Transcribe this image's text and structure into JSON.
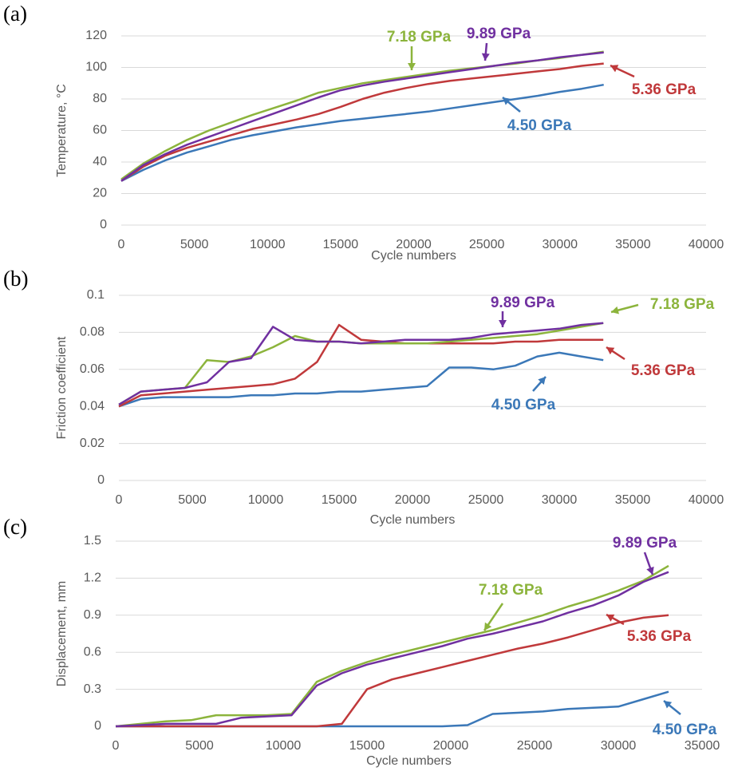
{
  "chart_data": [
    {
      "type": "line",
      "label": "(a)",
      "x_label": "Cycle numbers",
      "y_label": "Temperature, °C",
      "x": [
        0,
        1500,
        3000,
        4500,
        6000,
        7500,
        9000,
        10500,
        12000,
        13500,
        15000,
        16500,
        18000,
        19500,
        21000,
        22500,
        24000,
        25500,
        27000,
        28500,
        30000,
        31500,
        33000
      ],
      "xlim": [
        0,
        40000
      ],
      "xticks": [
        0,
        5000,
        10000,
        15000,
        20000,
        25000,
        30000,
        35000,
        40000
      ],
      "ylim": [
        0,
        120
      ],
      "yticks": [
        0,
        20,
        40,
        60,
        80,
        100,
        120
      ],
      "grid": true,
      "series": [
        {
          "name": "4.50 GPa",
          "color": "#3b78b8",
          "values": [
            28,
            35,
            41,
            46,
            50,
            54,
            57,
            59.5,
            62,
            64,
            66,
            67.5,
            69,
            70.5,
            72,
            74,
            76,
            78,
            80,
            82,
            84.5,
            86.5,
            89
          ]
        },
        {
          "name": "5.36 GPa",
          "color": "#c0393b",
          "values": [
            28,
            37,
            44,
            49,
            53,
            57,
            61,
            64,
            67,
            70.5,
            75,
            80,
            84,
            87,
            89.5,
            91.5,
            93,
            94.5,
            96,
            97.5,
            99,
            101,
            102.5
          ]
        },
        {
          "name": "7.18 GPa",
          "color": "#8cb43c",
          "values": [
            29,
            39,
            47,
            54,
            60,
            65,
            70,
            74.5,
            79,
            84,
            87,
            90,
            92,
            94,
            96,
            98,
            99.5,
            101,
            102.5,
            104.5,
            106,
            108,
            110
          ]
        },
        {
          "name": "9.89 GPa",
          "color": "#7030a0",
          "values": [
            28,
            38,
            45,
            51,
            56,
            61,
            66,
            71,
            76,
            81,
            85.5,
            88.5,
            91,
            93,
            95,
            97,
            99,
            101,
            103,
            104.5,
            106.5,
            108,
            109.5
          ]
        }
      ]
    },
    {
      "type": "line",
      "label": "(b)",
      "x_label": "Cycle numbers",
      "y_label": "Friction coefficient",
      "x": [
        0,
        1500,
        3000,
        4500,
        6000,
        7500,
        9000,
        10500,
        12000,
        13500,
        15000,
        16500,
        18000,
        19500,
        21000,
        22500,
        24000,
        25500,
        27000,
        28500,
        30000,
        31500,
        33000
      ],
      "xlim": [
        0,
        40000
      ],
      "xticks": [
        0,
        5000,
        10000,
        15000,
        20000,
        25000,
        30000,
        35000,
        40000
      ],
      "ylim": [
        0,
        0.1
      ],
      "yticks": [
        0,
        0.02,
        0.04,
        0.06,
        0.08,
        0.1
      ],
      "grid": true,
      "series": [
        {
          "name": "4.50 GPa",
          "color": "#3b78b8",
          "values": [
            0.04,
            0.044,
            0.045,
            0.045,
            0.045,
            0.045,
            0.046,
            0.046,
            0.047,
            0.047,
            0.048,
            0.048,
            0.049,
            0.05,
            0.051,
            0.061,
            0.061,
            0.06,
            0.062,
            0.067,
            0.069,
            0.067,
            0.065
          ]
        },
        {
          "name": "5.36 GPa",
          "color": "#c0393b",
          "values": [
            0.04,
            0.046,
            0.047,
            0.048,
            0.049,
            0.05,
            0.051,
            0.052,
            0.055,
            0.064,
            0.084,
            0.076,
            0.075,
            0.074,
            0.074,
            0.074,
            0.074,
            0.074,
            0.075,
            0.075,
            0.076,
            0.076,
            0.076
          ]
        },
        {
          "name": "7.18 GPa",
          "color": "#8cb43c",
          "values": [
            0.041,
            0.048,
            0.049,
            0.05,
            0.065,
            0.064,
            0.067,
            0.072,
            0.078,
            0.075,
            0.075,
            0.074,
            0.074,
            0.074,
            0.074,
            0.075,
            0.076,
            0.077,
            0.078,
            0.079,
            0.081,
            0.083,
            0.085
          ]
        },
        {
          "name": "9.89 GPa",
          "color": "#7030a0",
          "values": [
            0.041,
            0.048,
            0.049,
            0.05,
            0.053,
            0.064,
            0.066,
            0.083,
            0.076,
            0.075,
            0.075,
            0.074,
            0.075,
            0.076,
            0.076,
            0.076,
            0.077,
            0.079,
            0.08,
            0.081,
            0.082,
            0.084,
            0.085
          ]
        }
      ]
    },
    {
      "type": "line",
      "label": "(c)",
      "x_label": "Cycle numbers",
      "y_label": "Displacement, mm",
      "x": [
        0,
        1500,
        3000,
        4500,
        6000,
        7500,
        9000,
        10500,
        12000,
        13500,
        15000,
        16500,
        18000,
        19500,
        21000,
        22500,
        24000,
        25500,
        27000,
        28500,
        30000,
        31500,
        33000
      ],
      "xlim": [
        0,
        35000
      ],
      "xticks": [
        0,
        5000,
        10000,
        15000,
        20000,
        25000,
        30000,
        35000
      ],
      "ylim": [
        0,
        1.5
      ],
      "yticks": [
        0,
        0.3,
        0.6,
        0.9,
        1.2,
        1.5
      ],
      "grid": true,
      "series": [
        {
          "name": "4.50 GPa",
          "color": "#3b78b8",
          "values": [
            0,
            0,
            0,
            0,
            0,
            0,
            0,
            0,
            0,
            0,
            0,
            0,
            0,
            0,
            0.01,
            0.1,
            0.11,
            0.12,
            0.14,
            0.15,
            0.16,
            0.22,
            0.28
          ]
        },
        {
          "name": "5.36 GPa",
          "color": "#c0393b",
          "values": [
            0,
            0,
            0,
            0,
            0,
            0,
            0,
            0,
            0,
            0.02,
            0.3,
            0.38,
            0.43,
            0.48,
            0.53,
            0.58,
            0.63,
            0.67,
            0.72,
            0.78,
            0.84,
            0.88,
            0.9
          ]
        },
        {
          "name": "7.18 GPa",
          "color": "#8cb43c",
          "values": [
            0,
            0.02,
            0.04,
            0.05,
            0.09,
            0.09,
            0.09,
            0.1,
            0.36,
            0.45,
            0.52,
            0.58,
            0.63,
            0.68,
            0.73,
            0.78,
            0.84,
            0.9,
            0.97,
            1.03,
            1.1,
            1.18,
            1.3
          ]
        },
        {
          "name": "9.89 GPa",
          "color": "#7030a0",
          "values": [
            0,
            0.01,
            0.02,
            0.02,
            0.02,
            0.07,
            0.08,
            0.09,
            0.33,
            0.43,
            0.5,
            0.55,
            0.6,
            0.65,
            0.71,
            0.75,
            0.8,
            0.85,
            0.92,
            0.98,
            1.06,
            1.17,
            1.25
          ]
        }
      ]
    }
  ]
}
